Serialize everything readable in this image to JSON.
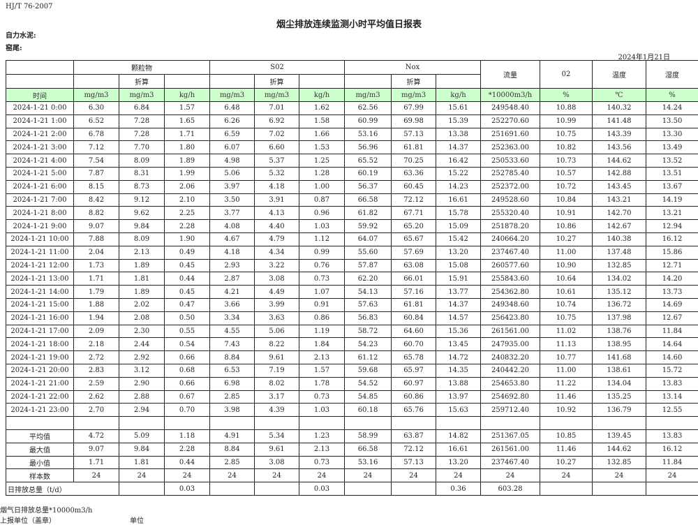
{
  "header": {
    "standard": "HJ/T  76-2007",
    "title": "烟尘排放连续监测小时平均值日报表",
    "company": "自力水泥:",
    "kiln": "窑尾:",
    "date": "2024年1月21日"
  },
  "table": {
    "groups": [
      "颗粒物",
      "S02",
      "Nox"
    ],
    "converted": "折算",
    "single": [
      "流量",
      "02",
      "温度",
      "湿度"
    ],
    "units": [
      "时间",
      "mg/m3",
      "mg/m3",
      "kg/h",
      "mg/m3",
      "mg/m3",
      "kg/h",
      "mg/m3",
      "mg/m3",
      "kg/h",
      "*10000m3/h",
      "%",
      "℃",
      "%"
    ],
    "rows": [
      [
        "2024-1-21 0:00",
        "6.30",
        "6.84",
        "1.57",
        "6.48",
        "7.01",
        "1.62",
        "62.56",
        "67.99",
        "15.61",
        "249548.40",
        "10.88",
        "140.32",
        "14.24"
      ],
      [
        "2024-1-21 1:00",
        "6.52",
        "7.28",
        "1.65",
        "6.26",
        "6.92",
        "1.58",
        "60.99",
        "69.98",
        "15.39",
        "252270.60",
        "10.99",
        "141.48",
        "13.50"
      ],
      [
        "2024-1-21 2:00",
        "6.78",
        "7.28",
        "1.71",
        "6.59",
        "7.02",
        "1.66",
        "53.16",
        "57.13",
        "13.38",
        "251691.60",
        "10.75",
        "143.39",
        "13.30"
      ],
      [
        "2024-1-21 3:00",
        "7.12",
        "7.70",
        "1.80",
        "6.07",
        "6.60",
        "1.53",
        "56.96",
        "61.81",
        "14.37",
        "252363.00",
        "10.82",
        "143.56",
        "13.49"
      ],
      [
        "2024-1-21 4:00",
        "7.54",
        "8.09",
        "1.89",
        "4.98",
        "5.37",
        "1.25",
        "65.52",
        "70.25",
        "16.42",
        "250533.60",
        "10.73",
        "144.62",
        "13.52"
      ],
      [
        "2024-1-21 5:00",
        "7.87",
        "8.31",
        "1.99",
        "5.06",
        "5.32",
        "1.28",
        "60.19",
        "63.36",
        "15.22",
        "252785.40",
        "10.57",
        "142.88",
        "13.51"
      ],
      [
        "2024-1-21 6:00",
        "8.15",
        "8.73",
        "2.06",
        "3.97",
        "4.18",
        "1.00",
        "56.37",
        "60.45",
        "14.23",
        "252372.00",
        "10.72",
        "143.45",
        "13.67"
      ],
      [
        "2024-1-21 7:00",
        "8.42",
        "9.12",
        "2.10",
        "3.50",
        "3.91",
        "0.87",
        "66.58",
        "72.12",
        "16.61",
        "249528.60",
        "10.84",
        "143.21",
        "14.19"
      ],
      [
        "2024-1-21 8:00",
        "8.82",
        "9.62",
        "2.25",
        "3.77",
        "4.13",
        "0.96",
        "61.82",
        "67.71",
        "15.78",
        "255320.40",
        "10.91",
        "142.70",
        "13.21"
      ],
      [
        "2024-1-21 9:00",
        "9.07",
        "9.84",
        "2.28",
        "4.08",
        "4.40",
        "1.03",
        "59.92",
        "65.20",
        "15.09",
        "251878.20",
        "10.86",
        "142.67",
        "12.94"
      ],
      [
        "2024-1-21 10:00",
        "7.88",
        "8.09",
        "1.90",
        "4.67",
        "4.79",
        "1.12",
        "64.07",
        "65.67",
        "15.42",
        "240664.20",
        "10.27",
        "140.38",
        "16.12"
      ],
      [
        "2024-1-21 11:00",
        "2.04",
        "2.13",
        "0.49",
        "4.18",
        "4.34",
        "0.99",
        "55.60",
        "57.69",
        "13.20",
        "237467.40",
        "11.00",
        "137.48",
        "15.86"
      ],
      [
        "2024-1-21 12:00",
        "1.73",
        "1.89",
        "0.45",
        "2.93",
        "3.22",
        "0.76",
        "57.87",
        "63.08",
        "15.08",
        "260577.60",
        "10.90",
        "132.85",
        "12.71"
      ],
      [
        "2024-1-21 13:00",
        "1.71",
        "1.81",
        "0.44",
        "2.87",
        "3.08",
        "0.73",
        "62.20",
        "66.01",
        "15.91",
        "255843.60",
        "10.64",
        "134.02",
        "14.20"
      ],
      [
        "2024-1-21 14:00",
        "1.79",
        "1.89",
        "0.45",
        "4.21",
        "4.49",
        "1.07",
        "54.13",
        "57.16",
        "13.77",
        "254362.80",
        "10.61",
        "135.12",
        "13.73"
      ],
      [
        "2024-1-21 15:00",
        "1.88",
        "2.02",
        "0.47",
        "3.66",
        "3.99",
        "0.91",
        "57.63",
        "61.81",
        "14.37",
        "249348.60",
        "10.74",
        "136.72",
        "14.69"
      ],
      [
        "2024-1-21 16:00",
        "1.94",
        "2.08",
        "0.50",
        "3.34",
        "3.63",
        "0.86",
        "56.83",
        "60.84",
        "14.57",
        "256423.80",
        "10.75",
        "137.98",
        "12.67"
      ],
      [
        "2024-1-21 17:00",
        "2.09",
        "2.30",
        "0.55",
        "4.55",
        "5.06",
        "1.19",
        "58.72",
        "64.60",
        "15.36",
        "261561.00",
        "11.02",
        "138.76",
        "11.84"
      ],
      [
        "2024-1-21 18:00",
        "2.18",
        "2.44",
        "0.54",
        "7.43",
        "8.22",
        "1.84",
        "54.23",
        "60.70",
        "13.45",
        "247935.00",
        "11.13",
        "138.95",
        "14.64"
      ],
      [
        "2024-1-21 19:00",
        "2.72",
        "2.92",
        "0.66",
        "8.84",
        "9.61",
        "2.13",
        "61.12",
        "65.78",
        "14.72",
        "240832.20",
        "10.77",
        "141.68",
        "14.60"
      ],
      [
        "2024-1-21 20:00",
        "2.83",
        "3.12",
        "0.68",
        "6.53",
        "7.19",
        "1.57",
        "59.68",
        "65.97",
        "14.35",
        "240442.20",
        "11.00",
        "138.61",
        "15.72"
      ],
      [
        "2024-1-21 21:00",
        "2.59",
        "2.90",
        "0.66",
        "6.98",
        "8.02",
        "1.78",
        "54.52",
        "60.97",
        "13.88",
        "254653.80",
        "11.22",
        "134.04",
        "13.83"
      ],
      [
        "2024-1-21 22:00",
        "2.62",
        "2.88",
        "0.67",
        "2.85",
        "3.17",
        "0.73",
        "54.85",
        "60.86",
        "13.97",
        "254692.80",
        "11.46",
        "135.25",
        "13.14"
      ],
      [
        "2024-1-21 23:00",
        "2.70",
        "2.94",
        "0.70",
        "3.98",
        "4.39",
        "1.03",
        "60.18",
        "65.76",
        "15.63",
        "259712.40",
        "10.92",
        "136.79",
        "12.55"
      ]
    ],
    "stats": [
      [
        "平均值",
        "4.72",
        "5.09",
        "1.18",
        "4.91",
        "5.34",
        "1.23",
        "58.99",
        "63.87",
        "14.82",
        "251367.05",
        "10.85",
        "139.45",
        "13.83"
      ],
      [
        "最大值",
        "9.07",
        "9.84",
        "2.28",
        "8.84",
        "9.61",
        "2.13",
        "66.58",
        "72.12",
        "16.61",
        "261561.00",
        "11.46",
        "144.62",
        "16.12"
      ],
      [
        "最小值",
        "1.71",
        "1.81",
        "0.44",
        "2.85",
        "3.08",
        "0.73",
        "53.16",
        "57.13",
        "13.20",
        "237467.40",
        "10.27",
        "132.85",
        "11.84"
      ],
      [
        "样本数",
        "24",
        "24",
        "24",
        "24",
        "24",
        "24",
        "24",
        "24",
        "24",
        "24",
        "24",
        "24",
        "24"
      ]
    ],
    "daily": {
      "label": "日排放总量（t/d）",
      "values": [
        "",
        "0.03",
        "",
        "",
        "0.03",
        "",
        "",
        "0.36",
        "603.28",
        "",
        "",
        ""
      ]
    }
  },
  "footer": {
    "flue_total": "烟气日排放总量*10000m3/h",
    "reporter": "上报单位（盖章）",
    "unit": "单位"
  }
}
